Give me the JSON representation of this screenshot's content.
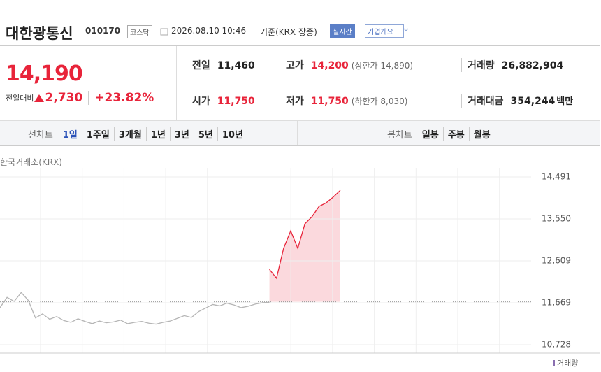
{
  "header": {
    "name": "대한광통신",
    "code": "010170",
    "market": "코스닥",
    "datetime": "2026.08.10 10:46",
    "basis": "기준(KRX 장중)",
    "realtime": "실시간",
    "overview": "기업개요"
  },
  "quote": {
    "price": "14,190",
    "change_label": "전일대비",
    "change": "2,730",
    "change_pct": "+23.82%"
  },
  "stats": [
    {
      "label": "전일",
      "value": "11,460"
    },
    {
      "label": "고가",
      "value": "14,200",
      "note": "(상한가 14,890)"
    },
    {
      "label": "거래량",
      "value": "26,882,904"
    },
    {
      "label": "시가",
      "value": "11,750"
    },
    {
      "label": "저가",
      "value": "11,750",
      "note": "(하한가 8,030)"
    },
    {
      "label": "거래대금",
      "value": "354,244",
      "unit": "백만"
    }
  ],
  "tabs": {
    "line_label": "선차트",
    "line": [
      "1일",
      "1주일",
      "3개월",
      "1년",
      "3년",
      "5년",
      "10년"
    ],
    "candle_label": "봉차트",
    "candle": [
      "일봉",
      "주봉",
      "월봉"
    ]
  },
  "chart_data": {
    "type": "line",
    "source": "한국거래소(KRX)",
    "volume_label": "거래량",
    "ylim": [
      10540,
      14695
    ],
    "yticks": [
      {
        "value": 14491,
        "label": "14,491"
      },
      {
        "value": 13550,
        "label": "13,550"
      },
      {
        "value": 12609,
        "label": "12,609"
      },
      {
        "value": 11669,
        "label": "11,669"
      },
      {
        "value": 10728,
        "label": "10,728"
      }
    ],
    "grid": true,
    "baseline": 11690,
    "series": [
      {
        "color": "#b5b5b5",
        "values": [
          11560,
          11790,
          11700,
          11900,
          11720,
          11330,
          11420,
          11300,
          11360,
          11270,
          11230,
          11310,
          11250,
          11200,
          11260,
          11220,
          11240,
          11280,
          11200,
          11230,
          11250,
          11210,
          11190,
          11230,
          11260,
          11320,
          11380,
          11340,
          11470,
          11550,
          11630,
          11600,
          11660,
          11620,
          11560,
          11590,
          11640,
          11670,
          11680,
          null,
          null,
          null,
          null,
          null,
          null,
          null,
          null,
          null,
          null
        ]
      },
      {
        "color": "#e8243a",
        "fill": "#fbd9dd",
        "values": [
          null,
          null,
          null,
          null,
          null,
          null,
          null,
          null,
          null,
          null,
          null,
          null,
          null,
          null,
          null,
          null,
          null,
          null,
          null,
          null,
          null,
          null,
          null,
          null,
          null,
          null,
          null,
          null,
          null,
          null,
          null,
          null,
          null,
          null,
          null,
          null,
          null,
          null,
          12420,
          12220,
          12890,
          13280,
          12890,
          13440,
          13600,
          13830,
          13910,
          14040,
          14190
        ]
      }
    ]
  }
}
